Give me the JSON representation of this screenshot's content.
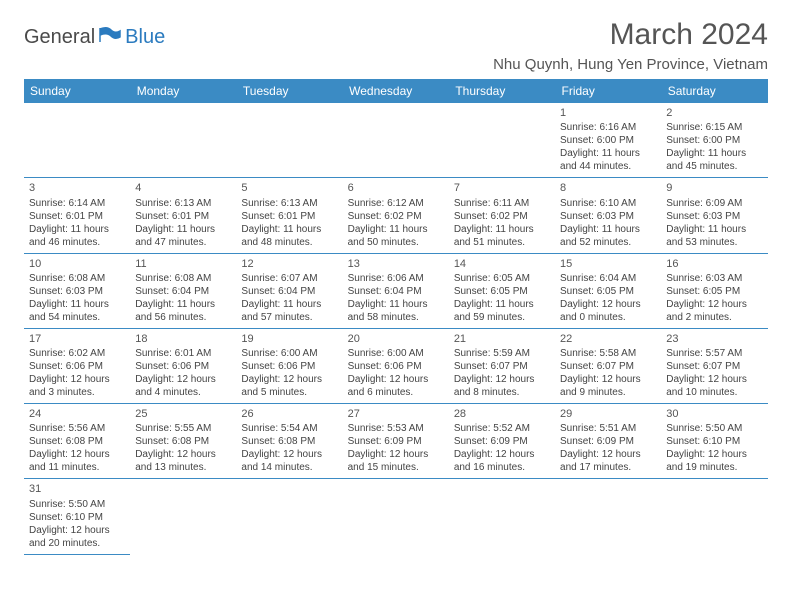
{
  "logo": {
    "part1": "General",
    "part2": "Blue"
  },
  "title": "March 2024",
  "location": "Nhu Quynh, Hung Yen Province, Vietnam",
  "colors": {
    "header_bg": "#3b8bc4",
    "header_fg": "#ffffff",
    "border": "#3b8bc4",
    "text": "#444444",
    "title": "#555555"
  },
  "weekdays": [
    "Sunday",
    "Monday",
    "Tuesday",
    "Wednesday",
    "Thursday",
    "Friday",
    "Saturday"
  ],
  "weeks": [
    [
      null,
      null,
      null,
      null,
      null,
      {
        "n": "1",
        "sr": "Sunrise: 6:16 AM",
        "ss": "Sunset: 6:00 PM",
        "dl": "Daylight: 11 hours and 44 minutes."
      },
      {
        "n": "2",
        "sr": "Sunrise: 6:15 AM",
        "ss": "Sunset: 6:00 PM",
        "dl": "Daylight: 11 hours and 45 minutes."
      }
    ],
    [
      {
        "n": "3",
        "sr": "Sunrise: 6:14 AM",
        "ss": "Sunset: 6:01 PM",
        "dl": "Daylight: 11 hours and 46 minutes."
      },
      {
        "n": "4",
        "sr": "Sunrise: 6:13 AM",
        "ss": "Sunset: 6:01 PM",
        "dl": "Daylight: 11 hours and 47 minutes."
      },
      {
        "n": "5",
        "sr": "Sunrise: 6:13 AM",
        "ss": "Sunset: 6:01 PM",
        "dl": "Daylight: 11 hours and 48 minutes."
      },
      {
        "n": "6",
        "sr": "Sunrise: 6:12 AM",
        "ss": "Sunset: 6:02 PM",
        "dl": "Daylight: 11 hours and 50 minutes."
      },
      {
        "n": "7",
        "sr": "Sunrise: 6:11 AM",
        "ss": "Sunset: 6:02 PM",
        "dl": "Daylight: 11 hours and 51 minutes."
      },
      {
        "n": "8",
        "sr": "Sunrise: 6:10 AM",
        "ss": "Sunset: 6:03 PM",
        "dl": "Daylight: 11 hours and 52 minutes."
      },
      {
        "n": "9",
        "sr": "Sunrise: 6:09 AM",
        "ss": "Sunset: 6:03 PM",
        "dl": "Daylight: 11 hours and 53 minutes."
      }
    ],
    [
      {
        "n": "10",
        "sr": "Sunrise: 6:08 AM",
        "ss": "Sunset: 6:03 PM",
        "dl": "Daylight: 11 hours and 54 minutes."
      },
      {
        "n": "11",
        "sr": "Sunrise: 6:08 AM",
        "ss": "Sunset: 6:04 PM",
        "dl": "Daylight: 11 hours and 56 minutes."
      },
      {
        "n": "12",
        "sr": "Sunrise: 6:07 AM",
        "ss": "Sunset: 6:04 PM",
        "dl": "Daylight: 11 hours and 57 minutes."
      },
      {
        "n": "13",
        "sr": "Sunrise: 6:06 AM",
        "ss": "Sunset: 6:04 PM",
        "dl": "Daylight: 11 hours and 58 minutes."
      },
      {
        "n": "14",
        "sr": "Sunrise: 6:05 AM",
        "ss": "Sunset: 6:05 PM",
        "dl": "Daylight: 11 hours and 59 minutes."
      },
      {
        "n": "15",
        "sr": "Sunrise: 6:04 AM",
        "ss": "Sunset: 6:05 PM",
        "dl": "Daylight: 12 hours and 0 minutes."
      },
      {
        "n": "16",
        "sr": "Sunrise: 6:03 AM",
        "ss": "Sunset: 6:05 PM",
        "dl": "Daylight: 12 hours and 2 minutes."
      }
    ],
    [
      {
        "n": "17",
        "sr": "Sunrise: 6:02 AM",
        "ss": "Sunset: 6:06 PM",
        "dl": "Daylight: 12 hours and 3 minutes."
      },
      {
        "n": "18",
        "sr": "Sunrise: 6:01 AM",
        "ss": "Sunset: 6:06 PM",
        "dl": "Daylight: 12 hours and 4 minutes."
      },
      {
        "n": "19",
        "sr": "Sunrise: 6:00 AM",
        "ss": "Sunset: 6:06 PM",
        "dl": "Daylight: 12 hours and 5 minutes."
      },
      {
        "n": "20",
        "sr": "Sunrise: 6:00 AM",
        "ss": "Sunset: 6:06 PM",
        "dl": "Daylight: 12 hours and 6 minutes."
      },
      {
        "n": "21",
        "sr": "Sunrise: 5:59 AM",
        "ss": "Sunset: 6:07 PM",
        "dl": "Daylight: 12 hours and 8 minutes."
      },
      {
        "n": "22",
        "sr": "Sunrise: 5:58 AM",
        "ss": "Sunset: 6:07 PM",
        "dl": "Daylight: 12 hours and 9 minutes."
      },
      {
        "n": "23",
        "sr": "Sunrise: 5:57 AM",
        "ss": "Sunset: 6:07 PM",
        "dl": "Daylight: 12 hours and 10 minutes."
      }
    ],
    [
      {
        "n": "24",
        "sr": "Sunrise: 5:56 AM",
        "ss": "Sunset: 6:08 PM",
        "dl": "Daylight: 12 hours and 11 minutes."
      },
      {
        "n": "25",
        "sr": "Sunrise: 5:55 AM",
        "ss": "Sunset: 6:08 PM",
        "dl": "Daylight: 12 hours and 13 minutes."
      },
      {
        "n": "26",
        "sr": "Sunrise: 5:54 AM",
        "ss": "Sunset: 6:08 PM",
        "dl": "Daylight: 12 hours and 14 minutes."
      },
      {
        "n": "27",
        "sr": "Sunrise: 5:53 AM",
        "ss": "Sunset: 6:09 PM",
        "dl": "Daylight: 12 hours and 15 minutes."
      },
      {
        "n": "28",
        "sr": "Sunrise: 5:52 AM",
        "ss": "Sunset: 6:09 PM",
        "dl": "Daylight: 12 hours and 16 minutes."
      },
      {
        "n": "29",
        "sr": "Sunrise: 5:51 AM",
        "ss": "Sunset: 6:09 PM",
        "dl": "Daylight: 12 hours and 17 minutes."
      },
      {
        "n": "30",
        "sr": "Sunrise: 5:50 AM",
        "ss": "Sunset: 6:10 PM",
        "dl": "Daylight: 12 hours and 19 minutes."
      }
    ],
    [
      {
        "n": "31",
        "sr": "Sunrise: 5:50 AM",
        "ss": "Sunset: 6:10 PM",
        "dl": "Daylight: 12 hours and 20 minutes."
      },
      null,
      null,
      null,
      null,
      null,
      null
    ]
  ]
}
